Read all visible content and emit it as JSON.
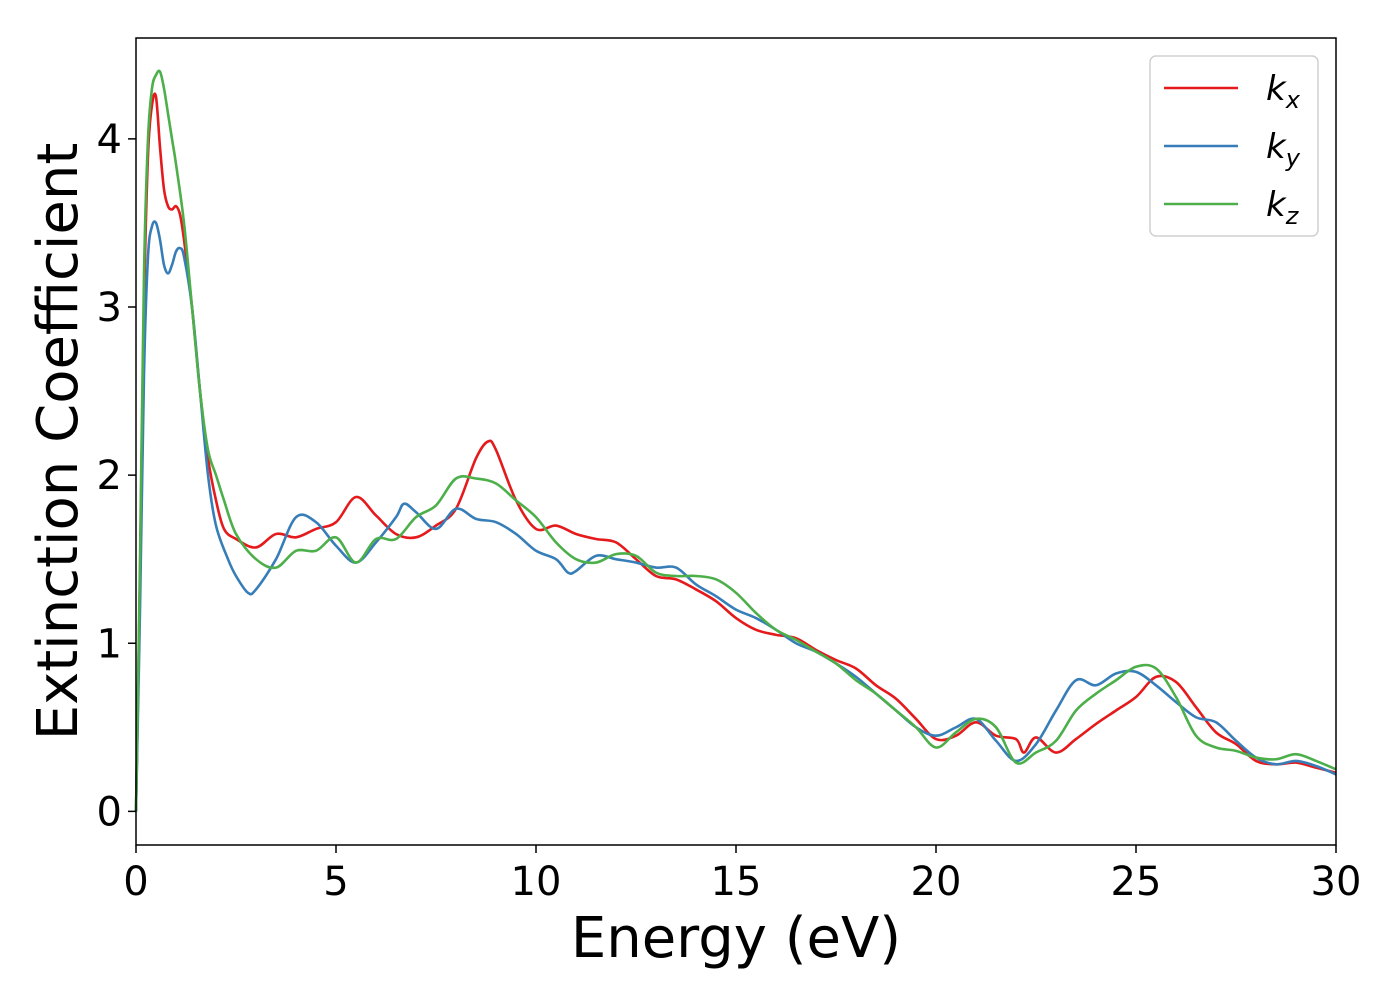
{
  "chart_data": {
    "type": "line",
    "xlabel": "Energy (eV)",
    "ylabel": "Extinction Coefficient",
    "xlim": [
      0,
      30
    ],
    "ylim": [
      -0.2,
      4.6
    ],
    "xticks": [
      0,
      5,
      10,
      15,
      20,
      25,
      30
    ],
    "yticks": [
      0,
      1,
      2,
      3,
      4
    ],
    "grid": false,
    "legend_placement": "top-right",
    "series": [
      {
        "name": "k_x",
        "label_main": "k",
        "label_sub": "x",
        "color": "#e41a1c",
        "x": [
          0,
          0.1,
          0.2,
          0.3,
          0.4,
          0.5,
          0.6,
          0.7,
          0.8,
          0.9,
          1.0,
          1.1,
          1.2,
          1.4,
          1.6,
          1.8,
          2.0,
          2.2,
          2.5,
          3.0,
          3.5,
          4.0,
          4.5,
          5.0,
          5.5,
          6.0,
          6.5,
          7.0,
          7.5,
          8.0,
          8.5,
          8.8,
          9.0,
          9.5,
          10.0,
          10.5,
          11.0,
          11.5,
          12.0,
          12.5,
          13.0,
          13.5,
          14.0,
          14.5,
          15.0,
          15.5,
          16.0,
          16.5,
          17.0,
          17.5,
          18.0,
          18.5,
          19.0,
          19.5,
          20.0,
          20.5,
          21.0,
          21.5,
          22.0,
          22.2,
          22.5,
          23.0,
          23.5,
          24.0,
          24.5,
          25.0,
          25.5,
          26.0,
          26.5,
          27.0,
          27.5,
          28.0,
          28.5,
          29.0,
          29.5,
          30.0
        ],
        "y": [
          0,
          1.4,
          3.0,
          3.9,
          4.2,
          4.25,
          3.95,
          3.7,
          3.6,
          3.58,
          3.6,
          3.55,
          3.4,
          3.0,
          2.5,
          2.1,
          1.85,
          1.68,
          1.62,
          1.57,
          1.65,
          1.63,
          1.68,
          1.72,
          1.87,
          1.76,
          1.65,
          1.63,
          1.7,
          1.8,
          2.1,
          2.2,
          2.15,
          1.85,
          1.68,
          1.7,
          1.65,
          1.62,
          1.6,
          1.5,
          1.4,
          1.38,
          1.32,
          1.25,
          1.15,
          1.08,
          1.05,
          1.03,
          0.96,
          0.9,
          0.85,
          0.75,
          0.67,
          0.55,
          0.43,
          0.45,
          0.53,
          0.45,
          0.43,
          0.35,
          0.44,
          0.35,
          0.43,
          0.52,
          0.6,
          0.68,
          0.8,
          0.77,
          0.62,
          0.47,
          0.4,
          0.3,
          0.28,
          0.29,
          0.26,
          0.23
        ]
      },
      {
        "name": "k_y",
        "label_main": "k",
        "label_sub": "y",
        "color": "#377eb8",
        "x": [
          0,
          0.1,
          0.2,
          0.3,
          0.4,
          0.5,
          0.6,
          0.7,
          0.8,
          0.9,
          1.0,
          1.1,
          1.2,
          1.4,
          1.6,
          1.8,
          2.0,
          2.3,
          2.5,
          2.8,
          3.0,
          3.5,
          4.0,
          4.5,
          5.0,
          5.5,
          6.0,
          6.5,
          6.7,
          7.0,
          7.5,
          8.0,
          8.5,
          9.0,
          9.5,
          10.0,
          10.5,
          10.8,
          11.0,
          11.5,
          12.0,
          12.5,
          13.0,
          13.5,
          14.0,
          14.5,
          15.0,
          15.5,
          16.0,
          16.5,
          17.0,
          17.5,
          18.0,
          18.5,
          19.0,
          19.5,
          20.0,
          20.5,
          21.0,
          21.5,
          22.0,
          22.5,
          23.0,
          23.5,
          24.0,
          24.5,
          25.0,
          25.5,
          26.0,
          26.5,
          27.0,
          27.5,
          28.0,
          28.5,
          29.0,
          29.5,
          30.0
        ],
        "y": [
          0,
          1.2,
          2.6,
          3.3,
          3.48,
          3.5,
          3.4,
          3.25,
          3.2,
          3.25,
          3.33,
          3.35,
          3.3,
          3.0,
          2.5,
          2.0,
          1.7,
          1.5,
          1.4,
          1.3,
          1.32,
          1.5,
          1.75,
          1.72,
          1.58,
          1.48,
          1.6,
          1.75,
          1.83,
          1.78,
          1.68,
          1.8,
          1.74,
          1.72,
          1.65,
          1.55,
          1.5,
          1.42,
          1.43,
          1.52,
          1.5,
          1.48,
          1.45,
          1.45,
          1.35,
          1.28,
          1.2,
          1.15,
          1.08,
          1.0,
          0.95,
          0.88,
          0.8,
          0.7,
          0.6,
          0.5,
          0.45,
          0.5,
          0.55,
          0.42,
          0.3,
          0.4,
          0.6,
          0.78,
          0.75,
          0.82,
          0.83,
          0.75,
          0.65,
          0.56,
          0.53,
          0.42,
          0.32,
          0.28,
          0.3,
          0.27,
          0.22
        ]
      },
      {
        "name": "k_z",
        "label_main": "k",
        "label_sub": "z",
        "color": "#4daf4a",
        "x": [
          0,
          0.1,
          0.2,
          0.3,
          0.4,
          0.5,
          0.6,
          0.7,
          0.8,
          0.9,
          1.0,
          1.2,
          1.4,
          1.6,
          1.8,
          2.0,
          2.2,
          2.5,
          3.0,
          3.5,
          4.0,
          4.5,
          5.0,
          5.5,
          6.0,
          6.5,
          7.0,
          7.5,
          8.0,
          8.5,
          9.0,
          9.5,
          10.0,
          10.5,
          11.0,
          11.5,
          12.0,
          12.5,
          13.0,
          13.5,
          14.0,
          14.5,
          15.0,
          15.5,
          16.0,
          16.5,
          17.0,
          17.5,
          18.0,
          18.5,
          19.0,
          19.5,
          20.0,
          20.5,
          21.0,
          21.5,
          22.0,
          22.5,
          23.0,
          23.5,
          24.0,
          24.5,
          25.0,
          25.5,
          26.0,
          26.5,
          27.0,
          27.5,
          28.0,
          28.5,
          29.0,
          29.5,
          30.0
        ],
        "y": [
          0,
          1.5,
          3.2,
          4.0,
          4.3,
          4.38,
          4.4,
          4.3,
          4.15,
          4.0,
          3.85,
          3.5,
          3.0,
          2.5,
          2.15,
          2.0,
          1.85,
          1.65,
          1.5,
          1.45,
          1.55,
          1.55,
          1.63,
          1.48,
          1.62,
          1.62,
          1.75,
          1.82,
          1.98,
          1.98,
          1.95,
          1.85,
          1.75,
          1.6,
          1.5,
          1.48,
          1.53,
          1.52,
          1.42,
          1.4,
          1.4,
          1.38,
          1.3,
          1.18,
          1.08,
          1.02,
          0.95,
          0.88,
          0.78,
          0.7,
          0.6,
          0.5,
          0.38,
          0.47,
          0.55,
          0.5,
          0.29,
          0.35,
          0.42,
          0.6,
          0.7,
          0.78,
          0.86,
          0.85,
          0.68,
          0.45,
          0.38,
          0.36,
          0.32,
          0.31,
          0.34,
          0.3,
          0.25
        ]
      }
    ]
  }
}
